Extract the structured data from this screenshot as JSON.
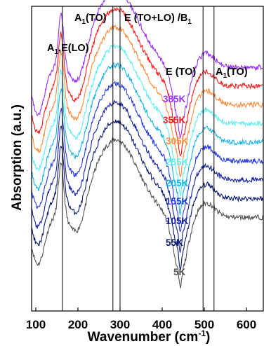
{
  "chart_data": {
    "type": "line",
    "title": "",
    "xlabel": "Wavenumber (cm",
    "xlabel_sup": "-1",
    "xlabel_end": ")",
    "ylabel": "Absorption (a.u.)",
    "xlim": [
      90,
      640
    ],
    "xticks": [
      100,
      200,
      300,
      400,
      500,
      600
    ],
    "grid": false,
    "legend": "none",
    "reference_lines": [
      {
        "x": 163
      },
      {
        "x": 283
      },
      {
        "x": 300
      },
      {
        "x": 497
      },
      {
        "x": 523
      }
    ],
    "annotations": [
      {
        "pre": "A",
        "sub": "1",
        "post": ",E(LO)"
      },
      {
        "pre": "A",
        "sub": "1",
        "post": "(TO)"
      },
      {
        "pre": "E (TO+LO) /B",
        "sub": "1",
        "post": ""
      },
      {
        "pre": "E (TO)",
        "sub": "",
        "post": ""
      },
      {
        "pre": "A",
        "sub": "1",
        "post": "(TO)"
      }
    ],
    "series": [
      {
        "name": "5K",
        "color": "#555555",
        "baseline": 10
      },
      {
        "name": "55K",
        "color": "#0b1a6e",
        "baseline": 18
      },
      {
        "name": "105K",
        "color": "#14209e",
        "baseline": 26
      },
      {
        "name": "155K",
        "color": "#2a3fe0",
        "baseline": 34
      },
      {
        "name": "205K",
        "color": "#19b4e6",
        "baseline": 42
      },
      {
        "name": "255K",
        "color": "#5ef0f0",
        "baseline": 50
      },
      {
        "name": "305K",
        "color": "#ff8c3c",
        "baseline": 58
      },
      {
        "name": "355K",
        "color": "#ff1a1a",
        "baseline": 66
      },
      {
        "name": "385K",
        "color": "#9933ff",
        "baseline": 74
      }
    ]
  }
}
